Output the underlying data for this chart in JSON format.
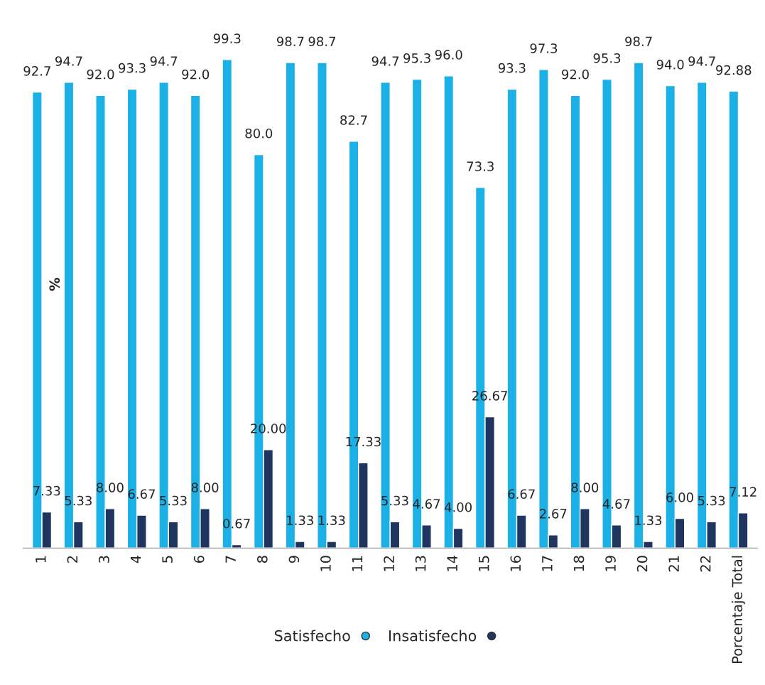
{
  "chart_data": {
    "type": "bar",
    "ylabel": "%",
    "categories": [
      "1",
      "2",
      "3",
      "4",
      "5",
      "6",
      "7",
      "8",
      "9",
      "10",
      "11",
      "12",
      "13",
      "14",
      "15",
      "16",
      "17",
      "18",
      "19",
      "20",
      "21",
      "22",
      "Porcentaje Total"
    ],
    "series": [
      {
        "name": "Satisfecho",
        "color": "#1bb1e7",
        "values": [
          92.7,
          94.7,
          92.0,
          93.3,
          94.7,
          92.0,
          99.3,
          80.0,
          98.7,
          98.7,
          82.7,
          94.7,
          95.3,
          96.0,
          73.3,
          93.3,
          97.3,
          92.0,
          95.3,
          98.7,
          94.0,
          94.7,
          92.88
        ],
        "value_labels": [
          "92.7",
          "94.7",
          "92.0",
          "93.3",
          "94.7",
          "92.0",
          "99.3",
          "80.0",
          "98.7",
          "98.7",
          "82.7",
          "94.7",
          "95.3",
          "96.0",
          "73.3",
          "93.3",
          "97.3",
          "92.0",
          "95.3",
          "98.7",
          "94.0",
          "94.7",
          "92.88"
        ]
      },
      {
        "name": "Insatisfecho",
        "color": "#1f3560",
        "values": [
          7.33,
          5.33,
          8.0,
          6.67,
          5.33,
          8.0,
          0.67,
          20.0,
          1.33,
          1.33,
          17.33,
          5.33,
          4.67,
          4.0,
          26.67,
          6.67,
          2.67,
          8.0,
          4.67,
          1.33,
          6.0,
          5.33,
          7.12
        ],
        "value_labels": [
          "7.33",
          "5.33",
          "8.00",
          "6.67",
          "5.33",
          "8.00",
          "0.67",
          "20.00",
          "1.33",
          "1.33",
          "17.33",
          "5.33",
          "4.67",
          "4.00",
          "26.67",
          "6.67",
          "2.67",
          "8.00",
          "4.67",
          "1.33",
          "6.00",
          "5.33",
          "7.12"
        ]
      }
    ],
    "legend": "bottom",
    "grid": false
  }
}
